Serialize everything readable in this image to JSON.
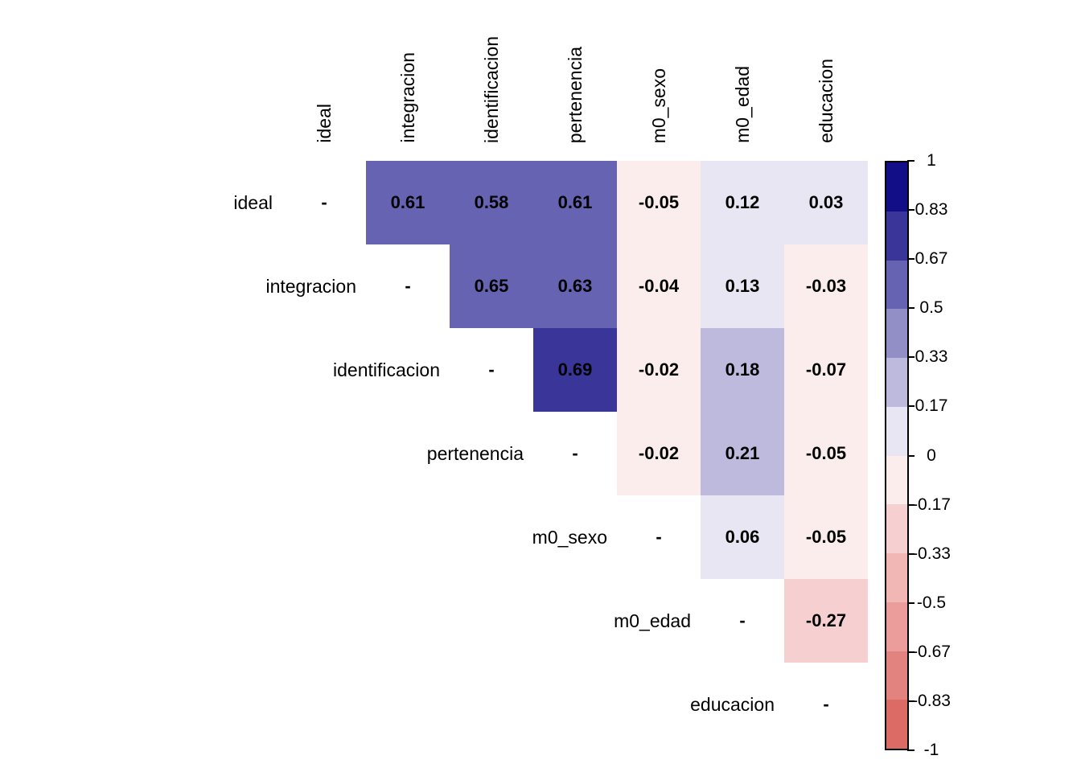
{
  "chart_data": {
    "type": "heatmap",
    "subtype": "correlation-matrix-upper-triangle",
    "title": "",
    "diagonal_symbol": "-",
    "value_decimals": 2,
    "variables": [
      "ideal",
      "integracion",
      "identificacion",
      "pertenencia",
      "m0_sexo",
      "m0_edad",
      "educacion"
    ],
    "matrix": [
      [
        null,
        0.61,
        0.58,
        0.61,
        -0.05,
        0.12,
        0.03
      ],
      [
        null,
        null,
        0.65,
        0.63,
        -0.04,
        0.13,
        -0.03
      ],
      [
        null,
        null,
        null,
        0.69,
        -0.02,
        0.18,
        -0.07
      ],
      [
        null,
        null,
        null,
        null,
        -0.02,
        0.21,
        -0.05
      ],
      [
        null,
        null,
        null,
        null,
        null,
        0.06,
        -0.05
      ],
      [
        null,
        null,
        null,
        null,
        null,
        null,
        -0.27
      ],
      [
        null,
        null,
        null,
        null,
        null,
        null,
        null
      ]
    ],
    "legend": {
      "position": "right",
      "range": [
        -1,
        1
      ],
      "tick_labels": [
        "1",
        "0.83",
        "0.67",
        "0.5",
        "0.33",
        "0.17",
        "0",
        "-0.17",
        "-0.33",
        "-0.5",
        "-0.67",
        "-0.83",
        "-1"
      ],
      "bands": [
        {
          "from": 0.83,
          "to": 1,
          "color": "#120E87"
        },
        {
          "from": 0.67,
          "to": 0.83,
          "color": "#3A3699"
        },
        {
          "from": 0.5,
          "to": 0.67,
          "color": "#6663B2"
        },
        {
          "from": 0.33,
          "to": 0.5,
          "color": "#918FC6"
        },
        {
          "from": 0.17,
          "to": 0.33,
          "color": "#BDBADE"
        },
        {
          "from": 0,
          "to": 0.17,
          "color": "#E7E6F2"
        },
        {
          "from": -0.17,
          "to": 0,
          "color": "#FBEDEB"
        },
        {
          "from": -0.33,
          "to": -0.17,
          "color": "#F6CFD1"
        },
        {
          "from": -0.5,
          "to": -0.33,
          "color": "#F0B7B5"
        },
        {
          "from": -0.67,
          "to": -0.5,
          "color": "#EA9D9A"
        },
        {
          "from": -0.83,
          "to": -0.67,
          "color": "#E38380"
        },
        {
          "from": -1,
          "to": -0.83,
          "color": "#DC6A65"
        }
      ]
    },
    "colors": {
      "background": "#FFFFFF",
      "text": "#000000",
      "positive_max": "#120E87",
      "negative_max": "#DC6A65"
    }
  }
}
